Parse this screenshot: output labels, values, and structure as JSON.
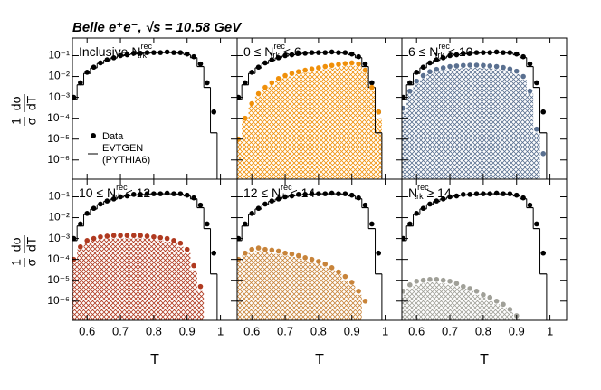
{
  "chart_data": {
    "type": "multi-panel-log",
    "title": "Belle e⁺e⁻,  √s = 10.58 GeV",
    "x_label": "T",
    "y_label": {
      "num_left": "1",
      "den_left": "σ",
      "num_right": "dσ",
      "den_right": "dT"
    },
    "legend": {
      "data": "Data",
      "mc": "EVTGEN",
      "mc_sub": "(PYTHIA6)"
    },
    "log_y": true,
    "xlim": [
      0.556,
      1.05
    ],
    "ylim": [
      1.2e-07,
      0.7
    ],
    "xticks": [
      0.6,
      0.7,
      0.8,
      0.9,
      1
    ],
    "yticks": [
      {
        "value": 0.1,
        "label": "10⁻¹"
      },
      {
        "value": 0.01,
        "label": "10⁻²"
      },
      {
        "value": 0.001,
        "label": "10⁻³"
      },
      {
        "value": 0.0001,
        "label": "10⁻⁴"
      },
      {
        "value": 1e-05,
        "label": "10⁻⁵"
      },
      {
        "value": 1e-06,
        "label": "10⁻⁶"
      }
    ],
    "x": [
      0.56,
      0.58,
      0.6,
      0.62,
      0.64,
      0.66,
      0.68,
      0.7,
      0.72,
      0.74,
      0.76,
      0.78,
      0.8,
      0.82,
      0.84,
      0.86,
      0.88,
      0.9,
      0.92,
      0.94,
      0.96,
      0.98
    ],
    "inclusive": {
      "data": [
        0.001,
        0.005,
        0.016,
        0.028,
        0.045,
        0.063,
        0.079,
        0.1,
        0.11,
        0.13,
        0.13,
        0.14,
        0.14,
        0.14,
        0.15,
        0.14,
        0.14,
        0.12,
        0.089,
        0.04,
        0.005,
        0.0002
      ],
      "mc": [
        0.0008,
        0.004,
        0.014,
        0.026,
        0.042,
        0.06,
        0.077,
        0.095,
        0.11,
        0.12,
        0.13,
        0.13,
        0.14,
        0.14,
        0.14,
        0.14,
        0.13,
        0.11,
        0.08,
        0.03,
        0.003,
        2e-05
      ]
    },
    "panels": [
      {
        "label": {
          "pre": "Inclusive N",
          "sup": "rec",
          "sub": "trk"
        }
      },
      {
        "label": {
          "pre": "0 ≤ N",
          "sup": "rec",
          "sub": "trk",
          "post": " < 6"
        },
        "color": "#f0900a",
        "data": [
          1e-05,
          0.0001,
          0.0005,
          0.0015,
          0.003,
          0.005,
          0.008,
          0.011,
          0.014,
          0.017,
          0.02,
          0.023,
          0.026,
          0.03,
          0.034,
          0.038,
          0.042,
          0.045,
          0.04,
          0.02,
          0.003,
          0.0002
        ],
        "mc": [
          8e-06,
          8e-05,
          0.0004,
          0.0011,
          0.0022,
          0.0038,
          0.006,
          0.0082,
          0.01,
          0.013,
          0.015,
          0.017,
          0.02,
          0.022,
          0.025,
          0.028,
          0.031,
          0.033,
          0.03,
          0.015,
          0.002,
          0.0001
        ]
      },
      {
        "label": {
          "pre": "6 ≤ N",
          "sup": "rec",
          "sub": "trk",
          "post": " < 10"
        },
        "color": "#5a7090",
        "data": [
          0.0003,
          0.002,
          0.006,
          0.011,
          0.017,
          0.022,
          0.026,
          0.03,
          0.032,
          0.034,
          0.035,
          0.035,
          0.034,
          0.032,
          0.03,
          0.027,
          0.023,
          0.018,
          0.01,
          0.002,
          3e-05,
          2e-06
        ],
        "mc": [
          0.0002,
          0.0015,
          0.0045,
          0.008,
          0.013,
          0.017,
          0.02,
          0.022,
          0.024,
          0.025,
          0.026,
          0.026,
          0.025,
          0.024,
          0.022,
          0.02,
          0.017,
          0.013,
          0.007,
          0.0015,
          2e-05,
          null
        ]
      },
      {
        "label": {
          "pre": "10 ≤ N",
          "sup": "rec",
          "sub": "trk",
          "post": " < 12"
        },
        "color": "#b03a20",
        "data": [
          0.0001,
          0.0004,
          0.0008,
          0.001,
          0.0012,
          0.0013,
          0.0014,
          0.0014,
          0.0014,
          0.0014,
          0.0014,
          0.0013,
          0.0012,
          0.0011,
          0.001,
          0.0008,
          0.0006,
          0.0003,
          5e-05,
          5e-06,
          null,
          null
        ],
        "mc": [
          8e-05,
          0.0003,
          0.0006,
          0.0008,
          0.0009,
          0.001,
          0.001,
          0.001,
          0.001,
          0.001,
          0.001,
          0.001,
          0.0009,
          0.0008,
          0.0007,
          0.0006,
          0.0004,
          0.0002,
          3e-05,
          3e-06,
          null,
          null
        ]
      },
      {
        "label": {
          "pre": "12 ≤ N",
          "sup": "rec",
          "sub": "trk",
          "post": " < 14"
        },
        "color": "#c8843a",
        "data": [
          0.0001,
          0.0002,
          0.0003,
          0.00035,
          0.0003,
          0.00028,
          0.00025,
          0.0002,
          0.00018,
          0.00015,
          0.00012,
          0.0001,
          8e-05,
          6e-05,
          4e-05,
          2.5e-05,
          1.5e-05,
          8e-06,
          3e-06,
          1e-06,
          null,
          null
        ],
        "mc": [
          7e-05,
          0.00015,
          0.0002,
          0.00025,
          0.00022,
          0.0002,
          0.00018,
          0.00015,
          0.00013,
          0.00011,
          9e-05,
          7e-05,
          6e-05,
          4e-05,
          3e-05,
          2e-05,
          1e-05,
          6e-06,
          2e-06,
          null,
          null,
          null
        ]
      },
      {
        "label": {
          "pre": "N",
          "sup": "rec",
          "sub": "trk",
          "post": " ≥ 14"
        },
        "color": "#a0a098",
        "data": [
          3e-06,
          6e-06,
          9e-06,
          1e-05,
          1.1e-05,
          1.1e-05,
          1e-05,
          9e-06,
          7e-06,
          5e-06,
          4e-06,
          3e-06,
          2e-06,
          1.5e-06,
          1e-06,
          7e-07,
          4e-07,
          2e-07,
          null,
          null,
          null,
          null
        ],
        "mc": [
          2e-06,
          4e-06,
          6e-06,
          7e-06,
          8e-06,
          8e-06,
          7e-06,
          6e-06,
          5e-06,
          4e-06,
          3e-06,
          2e-06,
          1.5e-06,
          1e-06,
          7e-07,
          5e-07,
          3e-07,
          1.5e-07,
          null,
          null,
          null,
          null
        ]
      }
    ]
  }
}
